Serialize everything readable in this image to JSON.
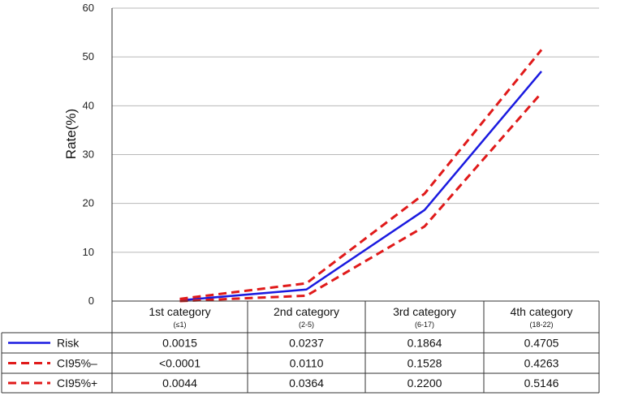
{
  "chart_data": {
    "type": "line",
    "ylabel": "Rate(%)",
    "ylim": [
      0,
      60
    ],
    "yticks": [
      0,
      10,
      20,
      30,
      40,
      50,
      60
    ],
    "grid": true,
    "categories": [
      {
        "name": "1st category",
        "range": "(≤1)"
      },
      {
        "name": "2nd category",
        "range": "(2-5)"
      },
      {
        "name": "3rd category",
        "range": "(6-17)"
      },
      {
        "name": "4th category",
        "range": "(18-22)"
      }
    ],
    "series": [
      {
        "name": "Risk",
        "style": "solid",
        "color": "#1a1ae0",
        "values": [
          0.15,
          2.37,
          18.64,
          47.05
        ],
        "table_values": [
          "0.0015",
          "0.0237",
          "0.1864",
          "0.4705"
        ]
      },
      {
        "name": "CI95%–",
        "style": "dashed",
        "color": "#e01a1a",
        "values": [
          0.0,
          1.1,
          15.28,
          42.63
        ],
        "table_values": [
          "<0.0001",
          "0.0110",
          "0.1528",
          "0.4263"
        ]
      },
      {
        "name": "CI95%+",
        "style": "dashed",
        "color": "#e01a1a",
        "values": [
          0.44,
          3.64,
          22.0,
          51.46
        ],
        "table_values": [
          "0.0044",
          "0.0364",
          "0.2200",
          "0.5146"
        ]
      }
    ]
  }
}
